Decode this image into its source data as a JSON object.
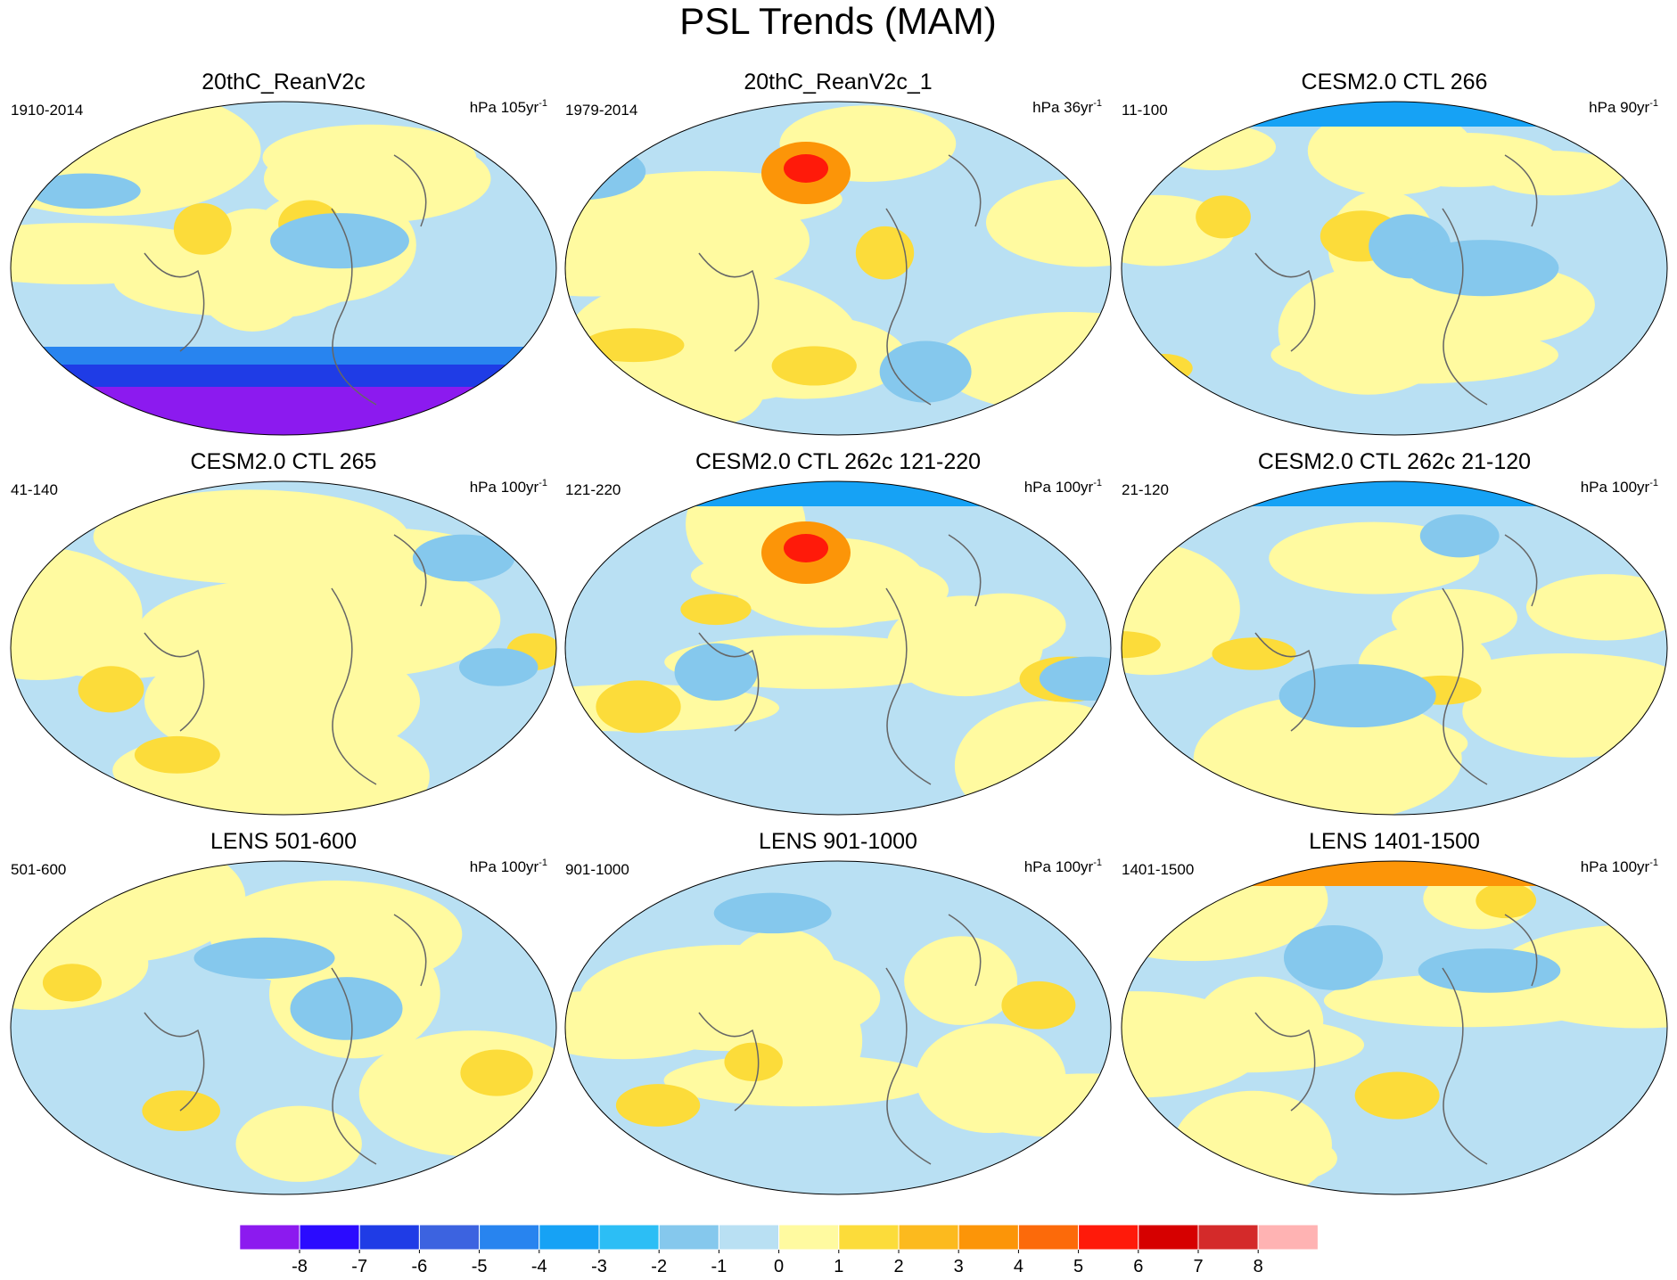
{
  "title": "PSL Trends (MAM)",
  "panels": [
    {
      "title": "20thC_ReanV2c",
      "period": "1910-2014",
      "units": "hPa 105yr",
      "units_exp": "-1"
    },
    {
      "title": "20thC_ReanV2c_1",
      "period": "1979-2014",
      "units": "hPa 36yr",
      "units_exp": "-1"
    },
    {
      "title": "CESM2.0 CTL 266",
      "period": "11-100",
      "units": "hPa 90yr",
      "units_exp": "-1"
    },
    {
      "title": "CESM2.0 CTL 265",
      "period": "41-140",
      "units": "hPa 100yr",
      "units_exp": "-1"
    },
    {
      "title": "CESM2.0 CTL 262c 121-220",
      "period": "121-220",
      "units": "hPa 100yr",
      "units_exp": "-1"
    },
    {
      "title": "CESM2.0 CTL 262c 21-120",
      "period": "21-120",
      "units": "hPa 100yr",
      "units_exp": "-1"
    },
    {
      "title": "LENS 501-600",
      "period": "501-600",
      "units": "hPa 100yr",
      "units_exp": "-1"
    },
    {
      "title": "LENS 901-1000",
      "period": "901-1000",
      "units": "hPa 100yr",
      "units_exp": "-1"
    },
    {
      "title": "LENS 1401-1500",
      "period": "1401-1500",
      "units": "hPa 100yr",
      "units_exp": "-1"
    }
  ],
  "colorbar": {
    "colors": [
      "#8c1aef",
      "#2b0bff",
      "#1f3ce6",
      "#3c63e0",
      "#2884ef",
      "#16a2f5",
      "#2cbef5",
      "#85c8ed",
      "#b9e0f3",
      "#fffaa0",
      "#fcdc3a",
      "#fcba1e",
      "#fc9508",
      "#fc6a0a",
      "#ff1a0a",
      "#d60000",
      "#d42a2a",
      "#ffb3b3"
    ],
    "ticks": [
      -8,
      -7,
      -6,
      -5,
      -4,
      -3,
      -2,
      -1,
      0,
      1,
      2,
      3,
      4,
      5,
      6,
      7,
      8
    ]
  }
}
